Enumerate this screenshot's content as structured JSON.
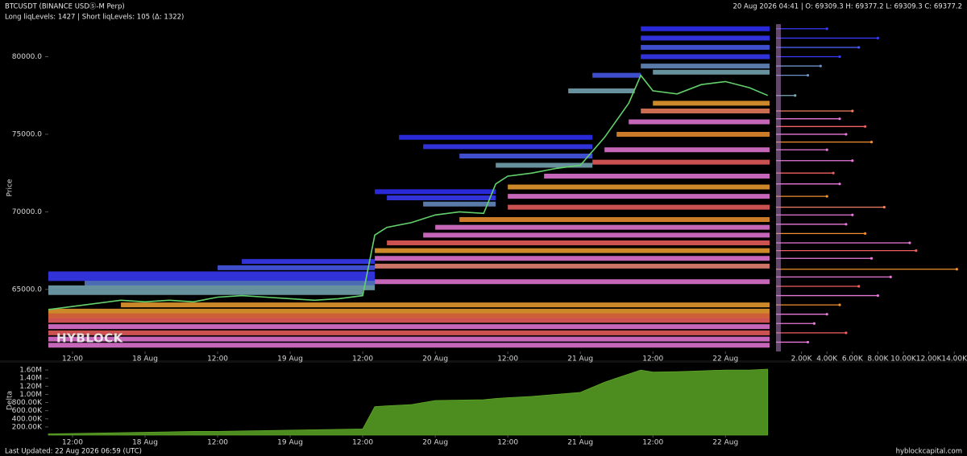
{
  "header": {
    "symbol": "BTCUSDT (BINANCE USDⓈ-M Perp)",
    "levels_summary": "Long liqLevels: 1427 | Short liqLevels: 105 (Δ: 1322)",
    "ohlc": "20 Aug 2026 04:41 | O: 69309.3 H: 69377.2 L: 69309.3 C: 69377.2",
    "watermark": "HYBLOCK"
  },
  "footer": {
    "updated": "Last Updated: 22 Aug 2026 06:59 (UTC)",
    "site": "hyblockcapital.com"
  },
  "chart_data": [
    {
      "type": "line",
      "y_label": "Price",
      "color": "#63d16b",
      "x": [
        8,
        12,
        16,
        20,
        24,
        28,
        32,
        36,
        40,
        44,
        48,
        52,
        56,
        60,
        62,
        64,
        68,
        72,
        76,
        80,
        82,
        84,
        88,
        92,
        96,
        100,
        104,
        106,
        108,
        112,
        116,
        120,
        124,
        127
      ],
      "values": [
        63700,
        63900,
        64100,
        64300,
        64200,
        64300,
        64200,
        64500,
        64600,
        64500,
        64400,
        64300,
        64400,
        64600,
        68500,
        69000,
        69300,
        69800,
        70000,
        69900,
        71800,
        72300,
        72500,
        72800,
        73000,
        74800,
        77000,
        78800,
        77800,
        77600,
        78200,
        78400,
        78000,
        77500
      ],
      "xlim": [
        8,
        127.3
      ],
      "xticks": [
        {
          "value": 12,
          "label": "12:00"
        },
        {
          "value": 24,
          "label": "18 Aug"
        },
        {
          "value": 36,
          "label": "12:00"
        },
        {
          "value": 48,
          "label": "19 Aug"
        },
        {
          "value": 60,
          "label": "12:00"
        },
        {
          "value": 72,
          "label": "20 Aug"
        },
        {
          "value": 84,
          "label": "12:00"
        },
        {
          "value": 96,
          "label": "21 Aug"
        },
        {
          "value": 108,
          "label": "12:00"
        },
        {
          "value": 120,
          "label": "22 Aug"
        }
      ],
      "ylim": [
        61000,
        82100
      ],
      "yticks": [
        {
          "value": 65000,
          "label": "65000.0"
        },
        {
          "value": 70000,
          "label": "70000.0"
        },
        {
          "value": 75000,
          "label": "75000.0"
        },
        {
          "value": 80000,
          "label": "80000.0"
        }
      ],
      "levels": [
        {
          "price": 66000,
          "start": 8,
          "end": 62,
          "color": "#3b3bff"
        },
        {
          "price": 65700,
          "start": 8,
          "end": 62,
          "color": "#3b3bff"
        },
        {
          "price": 65400,
          "start": 14,
          "end": 62,
          "color": "#5a7fd0"
        },
        {
          "price": 65100,
          "start": 8,
          "end": 62,
          "color": "#78aab8"
        },
        {
          "price": 64800,
          "start": 8,
          "end": 60,
          "color": "#78aab8"
        },
        {
          "price": 66800,
          "start": 40,
          "end": 62,
          "color": "#3b3bff"
        },
        {
          "price": 66400,
          "start": 36,
          "end": 62,
          "color": "#4a5cf0"
        },
        {
          "price": 63600,
          "start": 8,
          "end": 127.3,
          "color": "#f0a030"
        },
        {
          "price": 63300,
          "start": 8,
          "end": 127.3,
          "color": "#f07040"
        },
        {
          "price": 63000,
          "start": 8,
          "end": 127.3,
          "color": "#f06060"
        },
        {
          "price": 62600,
          "start": 8,
          "end": 127.3,
          "color": "#e878d8"
        },
        {
          "price": 62200,
          "start": 8,
          "end": 127.3,
          "color": "#f06060"
        },
        {
          "price": 61800,
          "start": 8,
          "end": 127.3,
          "color": "#e878d8"
        },
        {
          "price": 61400,
          "start": 8,
          "end": 127.3,
          "color": "#e878d8"
        },
        {
          "price": 64000,
          "start": 20,
          "end": 127.3,
          "color": "#f0a030"
        },
        {
          "price": 65500,
          "start": 62,
          "end": 127.3,
          "color": "#e878d8"
        },
        {
          "price": 66500,
          "start": 62,
          "end": 127.3,
          "color": "#f08878"
        },
        {
          "price": 67000,
          "start": 62,
          "end": 127.3,
          "color": "#e878d8"
        },
        {
          "price": 67500,
          "start": 62,
          "end": 127.3,
          "color": "#f0a030"
        },
        {
          "price": 68000,
          "start": 64,
          "end": 127.3,
          "color": "#f06060"
        },
        {
          "price": 68500,
          "start": 70,
          "end": 127.3,
          "color": "#e878d8"
        },
        {
          "price": 71300,
          "start": 62,
          "end": 82,
          "color": "#3030ff"
        },
        {
          "price": 70900,
          "start": 64,
          "end": 82,
          "color": "#3b3bff"
        },
        {
          "price": 70500,
          "start": 70,
          "end": 82,
          "color": "#6a90c8"
        },
        {
          "price": 69000,
          "start": 72,
          "end": 127.3,
          "color": "#e878d8"
        },
        {
          "price": 69500,
          "start": 76,
          "end": 127.3,
          "color": "#f09030"
        },
        {
          "price": 70300,
          "start": 84,
          "end": 127.3,
          "color": "#f06060"
        },
        {
          "price": 71000,
          "start": 84,
          "end": 127.3,
          "color": "#e878d8"
        },
        {
          "price": 71600,
          "start": 84,
          "end": 127.3,
          "color": "#f0a030"
        },
        {
          "price": 74800,
          "start": 66,
          "end": 98,
          "color": "#3030ff"
        },
        {
          "price": 74200,
          "start": 70,
          "end": 98,
          "color": "#3b3bff"
        },
        {
          "price": 73600,
          "start": 76,
          "end": 98,
          "color": "#4a5cf0"
        },
        {
          "price": 73000,
          "start": 82,
          "end": 98,
          "color": "#78aab8"
        },
        {
          "price": 72300,
          "start": 90,
          "end": 127.3,
          "color": "#e878d8"
        },
        {
          "price": 73200,
          "start": 98,
          "end": 127.3,
          "color": "#f06060"
        },
        {
          "price": 74000,
          "start": 100,
          "end": 127.3,
          "color": "#e878d8"
        },
        {
          "price": 75000,
          "start": 102,
          "end": 127.3,
          "color": "#f09030"
        },
        {
          "price": 75800,
          "start": 104,
          "end": 127.3,
          "color": "#e878d8"
        },
        {
          "price": 76500,
          "start": 106,
          "end": 127.3,
          "color": "#f08060"
        },
        {
          "price": 77000,
          "start": 108,
          "end": 127.3,
          "color": "#f0a030"
        },
        {
          "price": 78800,
          "start": 98,
          "end": 106,
          "color": "#4a5cf0"
        },
        {
          "price": 77800,
          "start": 94,
          "end": 105,
          "color": "#78aab8"
        },
        {
          "price": 81800,
          "start": 106,
          "end": 127.3,
          "color": "#3030ff"
        },
        {
          "price": 81200,
          "start": 106,
          "end": 127.3,
          "color": "#3b3bff"
        },
        {
          "price": 80600,
          "start": 106,
          "end": 127.3,
          "color": "#4a5cf0"
        },
        {
          "price": 80000,
          "start": 106,
          "end": 127.3,
          "color": "#3b3bff"
        },
        {
          "price": 79400,
          "start": 106,
          "end": 127.3,
          "color": "#6a90c8"
        },
        {
          "price": 79000,
          "start": 108,
          "end": 127.3,
          "color": "#78aab8"
        }
      ]
    },
    {
      "type": "bar",
      "orientation": "horizontal",
      "y": [
        81800,
        81200,
        80600,
        80000,
        79400,
        78800,
        77500,
        76500,
        76000,
        75500,
        75000,
        74500,
        74000,
        73300,
        72500,
        71800,
        71000,
        70300,
        69800,
        69200,
        68600,
        68000,
        67500,
        67000,
        66300,
        65800,
        65200,
        64600,
        64000,
        63400,
        62800,
        62200,
        61600
      ],
      "values": [
        4000,
        8000,
        6500,
        5000,
        3500,
        2500,
        1500,
        6000,
        5000,
        7000,
        5500,
        7500,
        4000,
        6000,
        4500,
        5000,
        4000,
        8500,
        6000,
        5500,
        7000,
        10500,
        11000,
        7500,
        14200,
        9000,
        6500,
        8000,
        5000,
        4000,
        3000,
        5500,
        2500
      ],
      "colors": [
        "#3b3bff",
        "#3b3bff",
        "#4a5cf0",
        "#3b3bff",
        "#6a90c8",
        "#6a90c8",
        "#78aab8",
        "#f08060",
        "#e878d8",
        "#f06060",
        "#e878d8",
        "#f09030",
        "#e878d8",
        "#e878d8",
        "#f06060",
        "#e878d8",
        "#f09030",
        "#f08060",
        "#e878d8",
        "#e878d8",
        "#f09030",
        "#e878d8",
        "#f06060",
        "#e878d8",
        "#f09030",
        "#e878d8",
        "#f06060",
        "#e878d8",
        "#f09030",
        "#e878d8",
        "#e878d8",
        "#f06060",
        "#e878d8"
      ],
      "xlim": [
        0,
        15000
      ],
      "xticks": [
        {
          "value": 2000,
          "label": "2.00K"
        },
        {
          "value": 4000,
          "label": "4.00K"
        },
        {
          "value": 6000,
          "label": "6.00K"
        },
        {
          "value": 8000,
          "label": "8.00K"
        },
        {
          "value": 10000,
          "label": "10.00K"
        },
        {
          "value": 12000,
          "label": "12.00K"
        },
        {
          "value": 14000,
          "label": "14.00K"
        }
      ],
      "ylim": [
        61000,
        82100
      ]
    },
    {
      "type": "area",
      "y_label": "Delta",
      "color": "#4d8c1f",
      "x": [
        8,
        12,
        16,
        20,
        24,
        28,
        32,
        36,
        40,
        44,
        48,
        52,
        56,
        60,
        62,
        64,
        68,
        72,
        76,
        80,
        82,
        84,
        88,
        92,
        96,
        100,
        104,
        106,
        108,
        112,
        116,
        120,
        124,
        127
      ],
      "values": [
        30000,
        40000,
        50000,
        60000,
        70000,
        80000,
        90000,
        90000,
        100000,
        110000,
        120000,
        130000,
        140000,
        150000,
        700000,
        720000,
        750000,
        850000,
        860000,
        870000,
        900000,
        920000,
        950000,
        1000000,
        1050000,
        1300000,
        1500000,
        1600000,
        1550000,
        1560000,
        1580000,
        1600000,
        1600000,
        1620000
      ],
      "xlim": [
        8,
        127.3
      ],
      "xticks": [
        {
          "value": 12,
          "label": "12:00"
        },
        {
          "value": 24,
          "label": "18 Aug"
        },
        {
          "value": 36,
          "label": "12:00"
        },
        {
          "value": 48,
          "label": "19 Aug"
        },
        {
          "value": 60,
          "label": "12:00"
        },
        {
          "value": 72,
          "label": "20 Aug"
        },
        {
          "value": 84,
          "label": "12:00"
        },
        {
          "value": 96,
          "label": "21 Aug"
        },
        {
          "value": 108,
          "label": "12:00"
        },
        {
          "value": 120,
          "label": "22 Aug"
        }
      ],
      "ylim": [
        0,
        1700000
      ],
      "yticks": [
        {
          "value": 200000,
          "label": "200.00K"
        },
        {
          "value": 400000,
          "label": "400.00K"
        },
        {
          "value": 600000,
          "label": "600.00K"
        },
        {
          "value": 800000,
          "label": "800.00K"
        },
        {
          "value": 1000000,
          "label": "1.00M"
        },
        {
          "value": 1200000,
          "label": "1.20M"
        },
        {
          "value": 1400000,
          "label": "1.40M"
        },
        {
          "value": 1600000,
          "label": "1.60M"
        }
      ]
    }
  ]
}
